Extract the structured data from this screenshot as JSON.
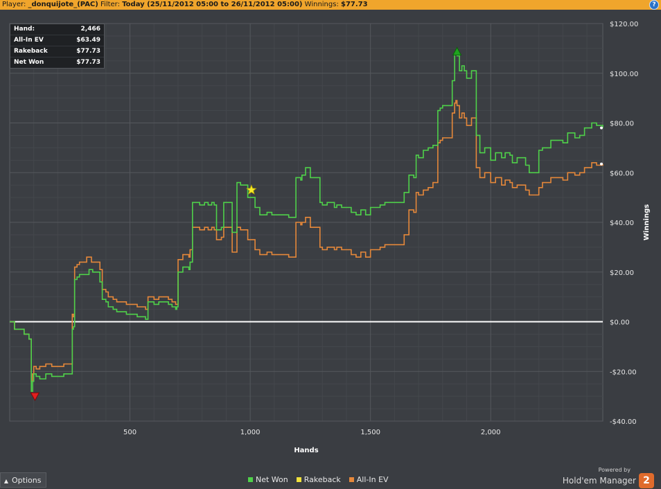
{
  "titlebar": {
    "player_label": "Player:",
    "player_name": "_donquijote_(PAC)",
    "filter_label": "Filter:",
    "filter_value": "Today (25/11/2012 05:00 to 26/11/2012 05:00)",
    "winnings_label": "Winnings:",
    "winnings_value": "$77.73",
    "help_icon": "help-icon"
  },
  "stats": [
    {
      "label": "Hand:",
      "value": "2,466"
    },
    {
      "label": "All-In EV",
      "value": "$63.49"
    },
    {
      "label": "Rakeback",
      "value": "$77.73"
    },
    {
      "label": "Net Won",
      "value": "$77.73"
    }
  ],
  "legend": [
    {
      "label": "Net Won",
      "color": "#4fd14a"
    },
    {
      "label": "Rakeback",
      "color": "#f1e23c"
    },
    {
      "label": "All-In EV",
      "color": "#e6883a"
    }
  ],
  "options": {
    "label": "Options",
    "icon": "chevron-up-icon"
  },
  "brand": {
    "powered_by": "Powered by",
    "name": "Hold'em Manager",
    "logo_text": "2"
  },
  "chart_data": {
    "type": "line",
    "xlabel": "Hands",
    "ylabel": "Winnings",
    "xlim": [
      0,
      2466
    ],
    "ylim": [
      -40,
      120
    ],
    "x_ticks": [
      500,
      1000,
      1500,
      2000
    ],
    "x_tick_labels": [
      "500",
      "1,000",
      "1,500",
      "2,000"
    ],
    "y_ticks": [
      120,
      100,
      80,
      60,
      40,
      20,
      0,
      -20,
      -40
    ],
    "y_tick_labels": [
      "$120.00",
      "$100.00",
      "$80.00",
      "$60.00",
      "$40.00",
      "$20.00",
      "$0.00",
      "-$20.00",
      "-$40.00"
    ],
    "grid": true,
    "legend_position": "bottom-center",
    "series": [
      {
        "name": "Net Won",
        "color": "#4fd14a",
        "x": [
          0,
          20,
          60,
          80,
          90,
          95,
          100,
          110,
          125,
          150,
          175,
          225,
          230,
          260,
          265,
          270,
          280,
          290,
          330,
          345,
          375,
          385,
          400,
          410,
          430,
          445,
          485,
          530,
          565,
          575,
          600,
          620,
          660,
          675,
          690,
          695,
          700,
          720,
          745,
          750,
          760,
          790,
          810,
          825,
          840,
          850,
          860,
          880,
          890,
          925,
          935,
          945,
          960,
          990,
          1020,
          1040,
          1070,
          1090,
          1130,
          1160,
          1190,
          1210,
          1215,
          1230,
          1250,
          1290,
          1300,
          1320,
          1350,
          1360,
          1380,
          1420,
          1440,
          1460,
          1480,
          1500,
          1540,
          1560,
          1600,
          1640,
          1660,
          1680,
          1690,
          1700,
          1720,
          1740,
          1760,
          1780,
          1790,
          1800,
          1840,
          1850,
          1855,
          1860,
          1870,
          1880,
          1890,
          1900,
          1920,
          1940,
          1955,
          1975,
          2000,
          2020,
          2045,
          2060,
          2080,
          2090,
          2110,
          2145,
          2160,
          2200,
          2215,
          2250,
          2300,
          2320,
          2350,
          2370,
          2390,
          2420,
          2440,
          2466
        ],
        "y": [
          0,
          -3,
          -5,
          -7,
          -28,
          -24,
          -21,
          -22,
          -23,
          -21,
          -22,
          -21,
          -21,
          -3,
          -2,
          17,
          18,
          19,
          21,
          20,
          16,
          9,
          8,
          6,
          5,
          4,
          3,
          2,
          1,
          8,
          7,
          8,
          7,
          6,
          5,
          6,
          20,
          22,
          21,
          24,
          48,
          47,
          48,
          47,
          48,
          47,
          37,
          38,
          48,
          36,
          36,
          56,
          55,
          50,
          46,
          43,
          44,
          43,
          43,
          42,
          58,
          57,
          59,
          62,
          58,
          48,
          47,
          48,
          46,
          47,
          46,
          44,
          43,
          45,
          43,
          46,
          47,
          48,
          48,
          52,
          59,
          58,
          67,
          66,
          69,
          70,
          71,
          85,
          86,
          87,
          97,
          108,
          109,
          107,
          101,
          103,
          101,
          98,
          101,
          75,
          68,
          70,
          65,
          68,
          66,
          68,
          67,
          64,
          66,
          63,
          60,
          69,
          70,
          73,
          72,
          76,
          74,
          75,
          78,
          80,
          79,
          78
        ]
      },
      {
        "name": "All-In EV",
        "color": "#e6883a",
        "x": [
          0,
          20,
          60,
          80,
          90,
          95,
          100,
          110,
          125,
          150,
          175,
          225,
          230,
          260,
          265,
          270,
          280,
          290,
          320,
          340,
          375,
          385,
          400,
          410,
          430,
          445,
          485,
          530,
          565,
          575,
          600,
          620,
          660,
          675,
          690,
          700,
          720,
          745,
          750,
          760,
          790,
          810,
          825,
          840,
          850,
          860,
          880,
          890,
          925,
          935,
          945,
          960,
          990,
          1020,
          1040,
          1070,
          1090,
          1130,
          1160,
          1190,
          1210,
          1215,
          1230,
          1250,
          1290,
          1300,
          1320,
          1350,
          1360,
          1380,
          1420,
          1440,
          1460,
          1480,
          1500,
          1540,
          1560,
          1600,
          1640,
          1660,
          1680,
          1690,
          1700,
          1720,
          1740,
          1760,
          1780,
          1790,
          1800,
          1840,
          1850,
          1855,
          1860,
          1870,
          1880,
          1890,
          1900,
          1920,
          1940,
          1955,
          1975,
          2000,
          2020,
          2045,
          2060,
          2080,
          2090,
          2110,
          2145,
          2160,
          2200,
          2215,
          2250,
          2300,
          2320,
          2350,
          2370,
          2390,
          2420,
          2440,
          2466
        ],
        "y": [
          0,
          -3,
          -5,
          -7,
          -24,
          -21,
          -18,
          -19,
          -18,
          -17,
          -18,
          -17,
          -17,
          3,
          2,
          22,
          23,
          24,
          26,
          24,
          21,
          13,
          12,
          10,
          9,
          8,
          7,
          6,
          5,
          10,
          9,
          10,
          9,
          8,
          7,
          25,
          27,
          26,
          29,
          38,
          37,
          38,
          37,
          38,
          37,
          33,
          34,
          38,
          28,
          28,
          38,
          37,
          33,
          29,
          27,
          28,
          27,
          27,
          26,
          40,
          39,
          40,
          42,
          38,
          30,
          29,
          30,
          29,
          30,
          29,
          27,
          26,
          28,
          26,
          29,
          30,
          31,
          31,
          35,
          45,
          44,
          52,
          51,
          53,
          54,
          56,
          72,
          73,
          74,
          84,
          88,
          89,
          87,
          82,
          84,
          82,
          79,
          82,
          62,
          58,
          60,
          56,
          58,
          55,
          57,
          56,
          54,
          55,
          53,
          51,
          54,
          56,
          58,
          57,
          60,
          59,
          60,
          62,
          64,
          63,
          63.49
        ]
      }
    ],
    "markers": [
      {
        "name": "max-marker",
        "shape": "triangle-up",
        "x": 1860,
        "y": 109,
        "color": "#1fa31f"
      },
      {
        "name": "min-marker",
        "shape": "triangle-down",
        "x": 105,
        "y": -30,
        "color": "#e02020"
      },
      {
        "name": "rakeback-marker",
        "shape": "star",
        "x": 1005,
        "y": 53,
        "color": "#f6ea2a"
      }
    ]
  }
}
